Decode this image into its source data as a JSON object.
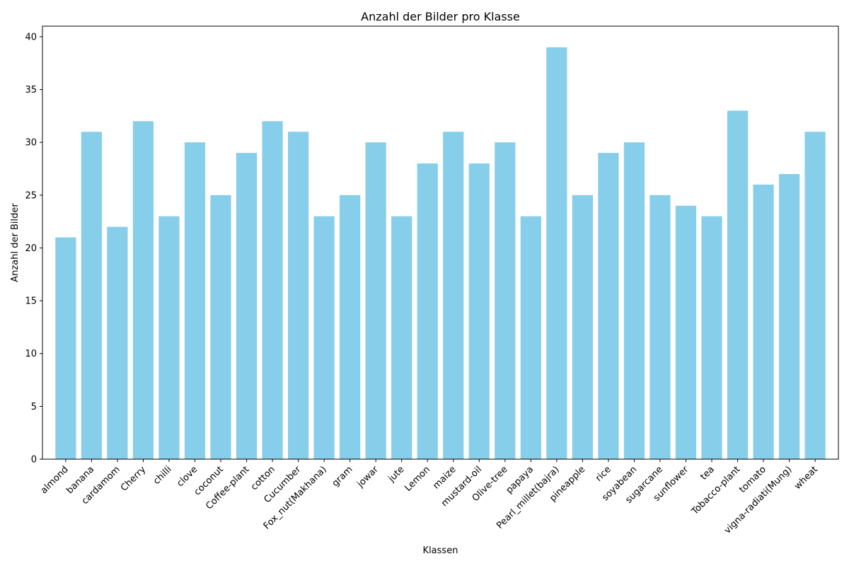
{
  "chart_data": {
    "type": "bar",
    "title": "Anzahl der Bilder pro Klasse",
    "xlabel": "Klassen",
    "ylabel": "Anzahl der Bilder",
    "categories": [
      "almond",
      "banana",
      "cardamom",
      "Cherry",
      "chilli",
      "clove",
      "coconut",
      "Coffee-plant",
      "cotton",
      "Cucumber",
      "Fox_nut(Makhana)",
      "gram",
      "jowar",
      "jute",
      "Lemon",
      "maize",
      "mustard-oil",
      "Olive-tree",
      "papaya",
      "Pearl_millet(bajra)",
      "pineapple",
      "rice",
      "soyabean",
      "sugarcane",
      "sunflower",
      "tea",
      "Tobacco-plant",
      "tomato",
      "vigna-radiati(Mung)",
      "wheat"
    ],
    "values": [
      21,
      31,
      22,
      32,
      23,
      30,
      25,
      29,
      32,
      31,
      23,
      25,
      30,
      23,
      28,
      31,
      28,
      30,
      23,
      39,
      25,
      29,
      30,
      25,
      24,
      23,
      33,
      26,
      27,
      31
    ],
    "ylim": [
      0,
      41
    ],
    "yticks": [
      0,
      5,
      10,
      15,
      20,
      25,
      30,
      35,
      40
    ],
    "grid": false,
    "legend": "none",
    "bar_color": "#87ceeb"
  }
}
